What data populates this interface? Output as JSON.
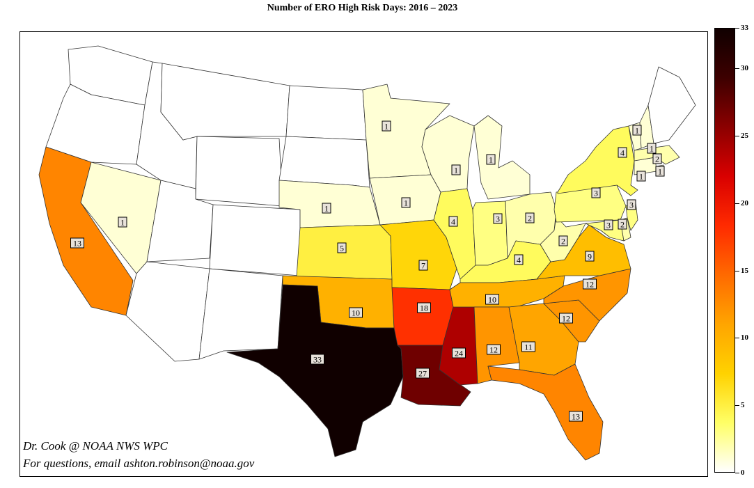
{
  "title": "Number of ERO High Risk Days: 2016 – 2023",
  "credit": {
    "line1": "Dr. Cook @ NOAA NWS WPC",
    "line2": "For questions, email ashton.robinson@noaa.gov"
  },
  "colorbar": {
    "min": 0,
    "max": 33,
    "ticks": [
      0,
      5,
      10,
      15,
      20,
      25,
      30,
      33
    ],
    "colormap": "hot_r",
    "colors": [
      "#ffffff",
      "#ffff66",
      "#ffd200",
      "#ffa500",
      "#ff6a00",
      "#ff2a00",
      "#d90000",
      "#8b0000",
      "#3d0000",
      "#100000"
    ]
  },
  "states": [
    {
      "name": "WA",
      "value": 0
    },
    {
      "name": "OR",
      "value": 0
    },
    {
      "name": "CA",
      "value": 13,
      "label": "13"
    },
    {
      "name": "NV",
      "value": 1,
      "label": "1"
    },
    {
      "name": "ID",
      "value": 0
    },
    {
      "name": "MT",
      "value": 0
    },
    {
      "name": "WY",
      "value": 0
    },
    {
      "name": "UT",
      "value": 0
    },
    {
      "name": "CO",
      "value": 0
    },
    {
      "name": "AZ",
      "value": 0
    },
    {
      "name": "NM",
      "value": 0
    },
    {
      "name": "ND",
      "value": 0
    },
    {
      "name": "SD",
      "value": 0
    },
    {
      "name": "NE",
      "value": 1,
      "label": "1"
    },
    {
      "name": "KS",
      "value": 5,
      "label": "5"
    },
    {
      "name": "OK",
      "value": 10,
      "label": "10"
    },
    {
      "name": "TX",
      "value": 33,
      "label": "33"
    },
    {
      "name": "MN",
      "value": 1,
      "label": "1"
    },
    {
      "name": "IA",
      "value": 1,
      "label": "1"
    },
    {
      "name": "MO",
      "value": 7,
      "label": "7"
    },
    {
      "name": "AR",
      "value": 18,
      "label": "18"
    },
    {
      "name": "LA",
      "value": 27,
      "label": "27"
    },
    {
      "name": "WI",
      "value": 1,
      "label": "1"
    },
    {
      "name": "IL",
      "value": 4,
      "label": "4"
    },
    {
      "name": "MS",
      "value": 24,
      "label": "24"
    },
    {
      "name": "MI",
      "value": 1,
      "label": "1"
    },
    {
      "name": "IN",
      "value": 3,
      "label": "3"
    },
    {
      "name": "OH",
      "value": 2,
      "label": "2"
    },
    {
      "name": "KY",
      "value": 4,
      "label": "4"
    },
    {
      "name": "TN",
      "value": 10,
      "label": "10"
    },
    {
      "name": "AL",
      "value": 12,
      "label": "12"
    },
    {
      "name": "GA",
      "value": 11,
      "label": "11"
    },
    {
      "name": "FL",
      "value": 13,
      "label": "13"
    },
    {
      "name": "SC",
      "value": 12,
      "label": "12"
    },
    {
      "name": "NC",
      "value": 12,
      "label": "12"
    },
    {
      "name": "VA",
      "value": 9,
      "label": "9"
    },
    {
      "name": "WV",
      "value": 2,
      "label": "2"
    },
    {
      "name": "PA",
      "value": 3,
      "label": "3"
    },
    {
      "name": "NY",
      "value": 4,
      "label": "4"
    },
    {
      "name": "MD",
      "value": 3,
      "label": "3"
    },
    {
      "name": "DE",
      "value": 2,
      "label": "2"
    },
    {
      "name": "NJ",
      "value": 3,
      "label": "3"
    },
    {
      "name": "CT",
      "value": 1,
      "label": "1"
    },
    {
      "name": "RI",
      "value": 1,
      "label": "1"
    },
    {
      "name": "MA",
      "value": 2,
      "label": "2"
    },
    {
      "name": "VT",
      "value": 1,
      "label": "1"
    },
    {
      "name": "NH",
      "value": 1,
      "label": "1"
    },
    {
      "name": "ME",
      "value": 0
    }
  ]
}
